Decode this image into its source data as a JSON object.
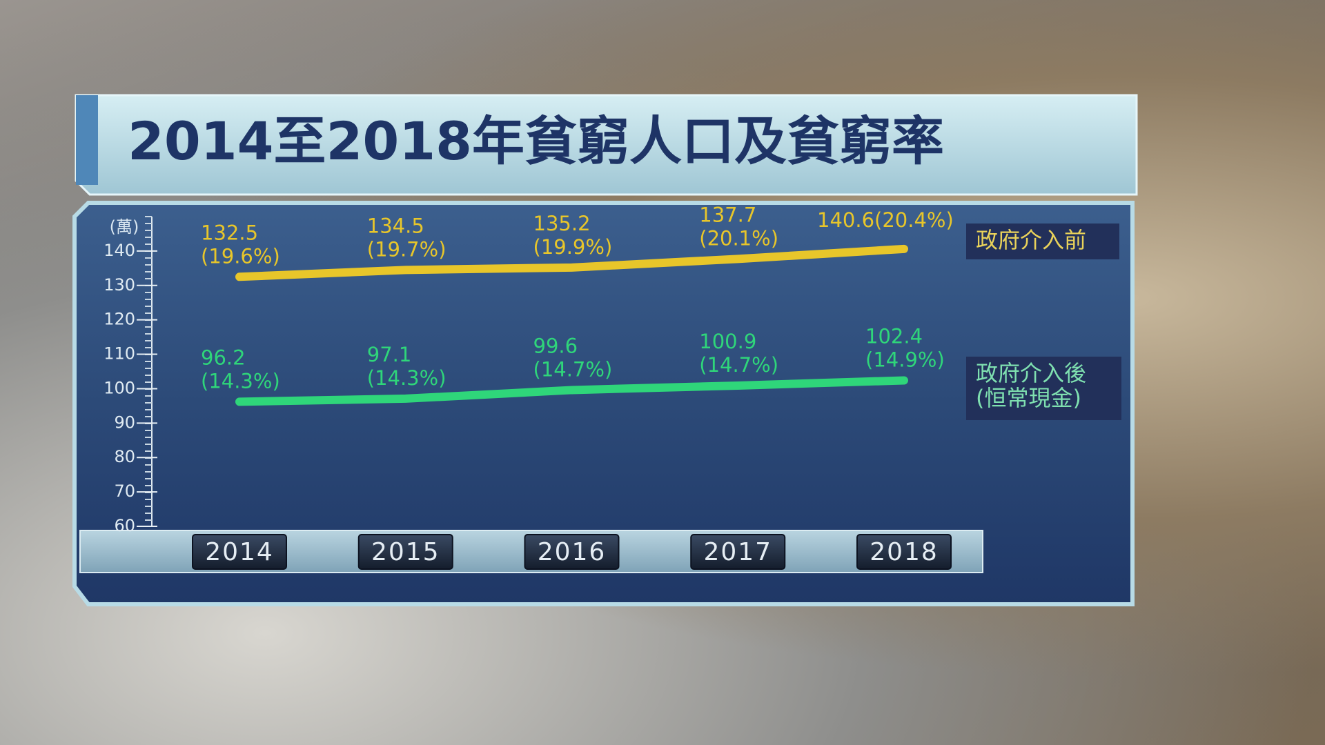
{
  "chart_data": {
    "type": "line",
    "title": "2014至2018年貧窮人口及貧窮率",
    "y_unit": "(萬)",
    "categories": [
      "2014",
      "2015",
      "2016",
      "2017",
      "2018"
    ],
    "ylim": [
      60,
      150
    ],
    "yticks": [
      60,
      70,
      80,
      90,
      100,
      110,
      120,
      130,
      140
    ],
    "series": [
      {
        "name": "政府介入前",
        "color": "#e8c62a",
        "values": [
          132.5,
          134.5,
          135.2,
          137.7,
          140.6
        ],
        "rates": [
          19.6,
          19.7,
          19.9,
          20.1,
          20.4
        ],
        "rate_labels": [
          "(19.6%)",
          "(19.7%)",
          "(19.9%)",
          "(20.1%)",
          "(20.4%)"
        ]
      },
      {
        "name": "政府介入後\n(恒常現金)",
        "color": "#2fd67a",
        "values": [
          96.2,
          97.1,
          99.6,
          100.9,
          102.4
        ],
        "rates": [
          14.3,
          14.3,
          14.7,
          14.7,
          14.9
        ],
        "rate_labels": [
          "(14.3%)",
          "(14.3%)",
          "(14.7%)",
          "(14.7%)",
          "(14.9%)"
        ]
      }
    ]
  }
}
